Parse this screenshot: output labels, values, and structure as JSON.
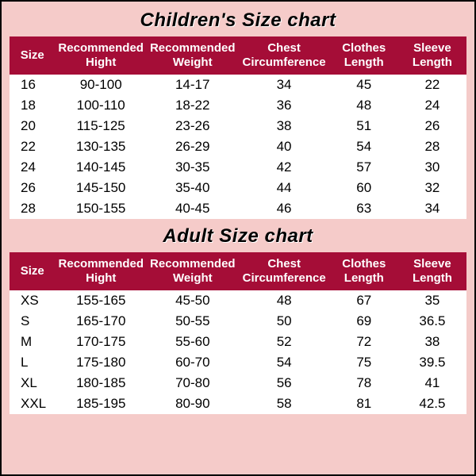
{
  "background_color": "#f5cbc9",
  "header_bg": "#a50d37",
  "header_text_color": "#ffffff",
  "title_color": "#000000",
  "cell_text_color": "#000000",
  "children": {
    "title": "Children's Size chart",
    "title_fontsize": 24,
    "columns": [
      "Size",
      "Recommended Hight",
      "Recommended Weight",
      "Chest Circumference",
      "Clothes Length",
      "Sleeve Length"
    ],
    "header_fontsize": 15,
    "cell_fontsize": 17,
    "rows": [
      [
        "16",
        "90-100",
        "14-17",
        "34",
        "45",
        "22"
      ],
      [
        "18",
        "100-110",
        "18-22",
        "36",
        "48",
        "24"
      ],
      [
        "20",
        "115-125",
        "23-26",
        "38",
        "51",
        "26"
      ],
      [
        "22",
        "130-135",
        "26-29",
        "40",
        "54",
        "28"
      ],
      [
        "24",
        "140-145",
        "30-35",
        "42",
        "57",
        "30"
      ],
      [
        "26",
        "145-150",
        "35-40",
        "44",
        "60",
        "32"
      ],
      [
        "28",
        "150-155",
        "40-45",
        "46",
        "63",
        "34"
      ]
    ]
  },
  "adult": {
    "title": "Adult Size chart",
    "title_fontsize": 24,
    "columns": [
      "Size",
      "Recommended Hight",
      "Recommended Weight",
      "Chest Circumference",
      "Clothes Length",
      "Sleeve Length"
    ],
    "header_fontsize": 15,
    "cell_fontsize": 17,
    "rows": [
      [
        "XS",
        "155-165",
        "45-50",
        "48",
        "67",
        "35"
      ],
      [
        "S",
        "165-170",
        "50-55",
        "50",
        "69",
        "36.5"
      ],
      [
        "M",
        "170-175",
        "55-60",
        "52",
        "72",
        "38"
      ],
      [
        "L",
        "175-180",
        "60-70",
        "54",
        "75",
        "39.5"
      ],
      [
        "XL",
        "180-185",
        "70-80",
        "56",
        "78",
        "41"
      ],
      [
        "XXL",
        "185-195",
        "80-90",
        "58",
        "81",
        "42.5"
      ]
    ]
  }
}
